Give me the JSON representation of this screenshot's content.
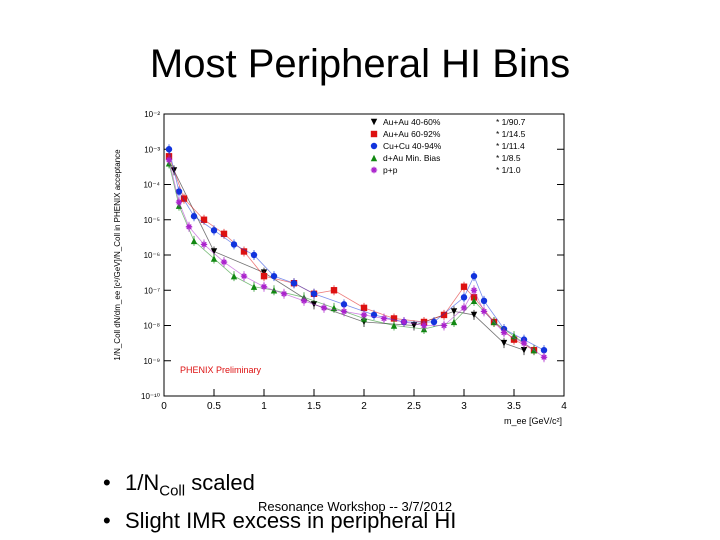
{
  "slide": {
    "title": "Most Peripheral HI Bins",
    "bullets": [
      {
        "pre": "1/N",
        "sub": "Coll",
        "post": " scaled"
      },
      {
        "text": "Slight IMR excess in peripheral HI"
      }
    ],
    "bullet_marker": "•",
    "footer": "Resonance Workshop -- 3/7/2012"
  },
  "chart_data": {
    "type": "scatter",
    "title": "",
    "xlabel": "m_ee [GeV/c²]",
    "ylabel": "1/N_Coll dN/dm_ee [c²/GeV]/N_Coll in PHENIX acceptance",
    "xlim": [
      0,
      4
    ],
    "ylim_log10": [
      -10,
      -2
    ],
    "x_ticks": [
      "0",
      "0.5",
      "1",
      "1.5",
      "2",
      "2.5",
      "3",
      "3.5",
      "4"
    ],
    "y_ticks": [
      "10⁻²",
      "10⁻³",
      "10⁻⁴",
      "10⁻⁵",
      "10⁻⁶",
      "10⁻⁷",
      "10⁻⁸",
      "10⁻⁹",
      "10⁻¹⁰"
    ],
    "annotation": "PHENIX Preliminary",
    "legend_position": "top-right",
    "colors": {
      "auau4060": "#000000",
      "auau6092": "#dd1111",
      "cucu": "#1133dd",
      "dau": "#118811",
      "pp": "#aa22cc"
    },
    "series": [
      {
        "name": "Au+Au 40-60%",
        "scale": "* 1/90.7",
        "color": "#000000",
        "marker": "triangle-down",
        "x": [
          0.1,
          0.5,
          1.0,
          1.5,
          2.0,
          2.5,
          2.9,
          3.1,
          3.4,
          3.6
        ],
        "log_y": [
          -3.6,
          -5.9,
          -6.5,
          -7.4,
          -7.9,
          -8.0,
          -7.6,
          -7.7,
          -8.5,
          -8.7
        ]
      },
      {
        "name": "Au+Au 60-92%",
        "scale": "* 1/14.5",
        "color": "#dd1111",
        "marker": "square",
        "x": [
          0.05,
          0.2,
          0.4,
          0.6,
          0.8,
          1.0,
          1.3,
          1.5,
          1.7,
          2.0,
          2.3,
          2.6,
          2.8,
          3.0,
          3.1,
          3.3,
          3.5,
          3.7
        ],
        "log_y": [
          -3.2,
          -4.4,
          -5.0,
          -5.4,
          -5.9,
          -6.6,
          -6.8,
          -7.1,
          -7.0,
          -7.5,
          -7.8,
          -7.9,
          -7.7,
          -6.9,
          -7.2,
          -7.9,
          -8.4,
          -8.7
        ]
      },
      {
        "name": "Cu+Cu 40-94%",
        "scale": "* 1/11.4",
        "color": "#1133dd",
        "marker": "circle",
        "x": [
          0.05,
          0.15,
          0.3,
          0.5,
          0.7,
          0.9,
          1.1,
          1.3,
          1.5,
          1.8,
          2.1,
          2.4,
          2.7,
          3.0,
          3.1,
          3.2,
          3.4,
          3.6,
          3.8
        ],
        "log_y": [
          -3.0,
          -4.2,
          -4.9,
          -5.3,
          -5.7,
          -6.0,
          -6.6,
          -6.8,
          -7.1,
          -7.4,
          -7.7,
          -7.9,
          -7.9,
          -7.2,
          -6.6,
          -7.3,
          -8.1,
          -8.4,
          -8.7
        ]
      },
      {
        "name": "d+Au Min. Bias",
        "scale": "* 1/8.5",
        "color": "#118811",
        "marker": "triangle-up",
        "x": [
          0.05,
          0.15,
          0.3,
          0.5,
          0.7,
          0.9,
          1.1,
          1.4,
          1.7,
          2.0,
          2.3,
          2.6,
          2.9,
          3.1,
          3.3,
          3.5,
          3.7
        ],
        "log_y": [
          -3.4,
          -4.6,
          -5.6,
          -6.1,
          -6.6,
          -6.9,
          -7.0,
          -7.2,
          -7.5,
          -7.8,
          -8.0,
          -8.1,
          -7.9,
          -7.3,
          -7.9,
          -8.3,
          -8.7
        ]
      },
      {
        "name": "p+p",
        "scale": "* 1/1.0",
        "color": "#aa22cc",
        "marker": "star",
        "x": [
          0.05,
          0.15,
          0.25,
          0.4,
          0.6,
          0.8,
          1.0,
          1.2,
          1.4,
          1.6,
          1.8,
          2.0,
          2.2,
          2.4,
          2.6,
          2.8,
          3.0,
          3.1,
          3.2,
          3.4,
          3.6,
          3.8
        ],
        "log_y": [
          -3.3,
          -4.5,
          -5.2,
          -5.7,
          -6.2,
          -6.6,
          -6.9,
          -7.1,
          -7.3,
          -7.5,
          -7.6,
          -7.7,
          -7.8,
          -7.9,
          -8.0,
          -8.0,
          -7.5,
          -7.0,
          -7.6,
          -8.2,
          -8.5,
          -8.9
        ]
      }
    ]
  }
}
